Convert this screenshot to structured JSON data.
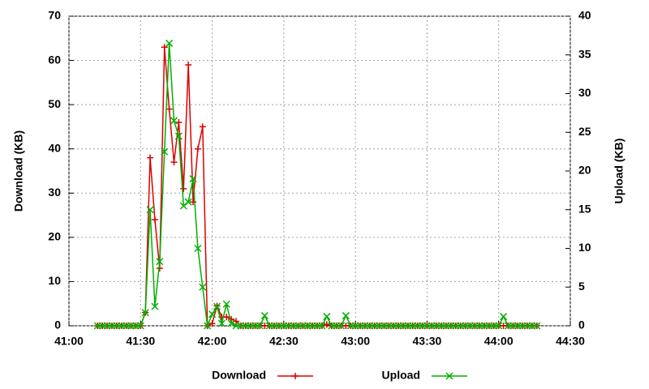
{
  "chart_data": {
    "type": "line",
    "x_label": "",
    "y_label": "Download (KB)",
    "y2_label": "Upload (KB)",
    "xlim": [
      2460,
      2670
    ],
    "xticks": [
      {
        "value": 2460,
        "label": "41:00"
      },
      {
        "value": 2490,
        "label": "41:30"
      },
      {
        "value": 2520,
        "label": "42:00"
      },
      {
        "value": 2550,
        "label": "42:30"
      },
      {
        "value": 2580,
        "label": "43:00"
      },
      {
        "value": 2610,
        "label": "43:30"
      },
      {
        "value": 2640,
        "label": "44:00"
      },
      {
        "value": 2670,
        "label": "44:30"
      }
    ],
    "ylim": [
      0,
      70
    ],
    "yticks": [
      0,
      10,
      20,
      30,
      40,
      50,
      60,
      70
    ],
    "y2lim": [
      0,
      40
    ],
    "y2ticks": [
      0,
      5,
      10,
      15,
      20,
      25,
      30,
      35,
      40
    ],
    "grid": true,
    "legend": "bottom",
    "x": [
      2472,
      2474,
      2476,
      2478,
      2480,
      2482,
      2484,
      2486,
      2488,
      2490,
      2492,
      2494,
      2496,
      2498,
      2500,
      2502,
      2504,
      2506,
      2508,
      2510,
      2512,
      2514,
      2516,
      2518,
      2520,
      2522,
      2524,
      2526,
      2528,
      2530,
      2532,
      2534,
      2536,
      2538,
      2540,
      2542,
      2544,
      2546,
      2548,
      2550,
      2552,
      2554,
      2556,
      2558,
      2560,
      2562,
      2564,
      2566,
      2568,
      2570,
      2572,
      2574,
      2576,
      2578,
      2580,
      2582,
      2584,
      2586,
      2588,
      2590,
      2592,
      2594,
      2596,
      2598,
      2600,
      2602,
      2604,
      2606,
      2608,
      2610,
      2612,
      2614,
      2616,
      2618,
      2620,
      2622,
      2624,
      2626,
      2628,
      2630,
      2632,
      2634,
      2636,
      2638,
      2640,
      2642,
      2644,
      2646,
      2648,
      2650,
      2652,
      2654,
      2656
    ],
    "series": [
      {
        "name": "Download",
        "color": "#dd0000",
        "marker": "plus",
        "values": [
          0,
          0,
          0,
          0,
          0,
          0,
          0,
          0,
          0,
          0,
          3,
          38,
          24,
          13,
          63,
          49,
          37,
          46,
          31,
          59,
          28,
          40,
          45,
          0,
          0.5,
          4.5,
          2,
          2,
          1.5,
          1,
          0,
          0,
          0,
          0,
          0,
          0,
          0,
          0,
          0,
          0,
          0,
          0,
          0,
          0,
          0,
          0,
          0,
          0,
          0.3,
          0,
          0,
          0,
          0,
          0,
          0,
          0,
          0,
          0,
          0,
          0,
          0,
          0,
          0,
          0,
          0,
          0,
          0,
          0,
          0,
          0,
          0,
          0,
          0,
          0,
          0,
          0,
          0,
          0,
          0,
          0,
          0,
          0,
          0,
          0,
          0,
          0,
          0,
          0,
          0,
          0,
          0,
          0,
          0
        ]
      },
      {
        "name": "Upload",
        "color": "#00b000",
        "marker": "cross",
        "axis": "y2",
        "values": [
          0,
          0,
          0,
          0,
          0,
          0,
          0,
          0,
          0,
          0,
          1.7,
          15,
          2.5,
          8.3,
          22.5,
          36.5,
          26.5,
          24.5,
          15.5,
          16,
          19,
          10,
          5,
          0,
          1.5,
          2.5,
          0.3,
          2.8,
          0.3,
          0,
          0,
          0,
          0,
          0,
          0,
          1.3,
          0,
          0,
          0,
          0,
          0,
          0,
          0,
          0,
          0,
          0,
          0,
          0,
          1.2,
          0,
          0,
          0,
          1.3,
          0,
          0,
          0,
          0,
          0,
          0,
          0,
          0,
          0,
          0,
          0,
          0,
          0,
          0,
          0,
          0,
          0,
          0,
          0,
          0,
          0,
          0,
          0,
          0,
          0,
          0,
          0,
          0,
          0,
          0,
          0,
          0,
          1.2,
          0,
          0,
          0,
          0,
          0,
          0,
          0
        ]
      }
    ]
  }
}
